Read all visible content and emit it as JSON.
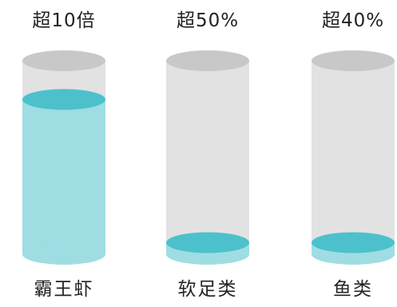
{
  "colors": {
    "glass_body": "#e3e2e2",
    "glass_top": "#c9c8c8",
    "liquid_body": "#9fdde3",
    "liquid_top": "#4cc1cc",
    "text": "#222222"
  },
  "cylinders": [
    {
      "top_label": "超10倍",
      "bottom_label": "霸王虾",
      "fill_fraction": 0.8
    },
    {
      "top_label": "超50%",
      "bottom_label": "软足类",
      "fill_fraction": 0.06
    },
    {
      "top_label": "超40%",
      "bottom_label": "鱼类",
      "fill_fraction": 0.06
    }
  ]
}
